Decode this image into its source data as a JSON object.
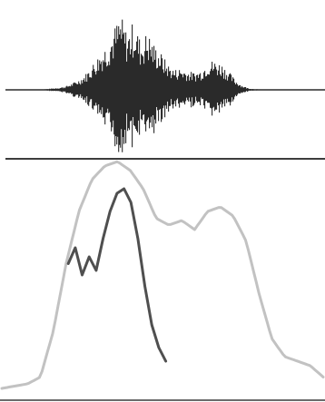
{
  "colors": {
    "background": "#ffffff",
    "waveform": "#2a2a2a",
    "axis": "#3c3c3c",
    "contour_light": "#c2c2c2",
    "contour_dark": "#4f4f4f"
  },
  "waveform": {
    "envelope": [
      0.0,
      0.01,
      0.02,
      0.03,
      0.05,
      0.09,
      0.14,
      0.22,
      0.35,
      0.48,
      0.6,
      0.78,
      0.95,
      0.72,
      0.88,
      0.62,
      0.74,
      0.58,
      0.47,
      0.33,
      0.26,
      0.28,
      0.24,
      0.22,
      0.26,
      0.38,
      0.37,
      0.34,
      0.24,
      0.13,
      0.06,
      0.02,
      0.01,
      0.0,
      0.0,
      0.0
    ],
    "region_fraction": [
      0.15,
      0.82
    ]
  },
  "contours": {
    "intensity": [
      0.0,
      0.01,
      0.02,
      0.05,
      0.25,
      0.55,
      0.78,
      0.92,
      0.98,
      1.0,
      0.96,
      0.88,
      0.75,
      0.72,
      0.74,
      0.7,
      0.78,
      0.8,
      0.76,
      0.65,
      0.42,
      0.22,
      0.14,
      0.12,
      0.1,
      0.05
    ],
    "pitch": [
      0.55,
      0.62,
      0.5,
      0.58,
      0.52,
      0.66,
      0.78,
      0.86,
      0.88,
      0.82,
      0.66,
      0.45,
      0.28,
      0.18,
      0.12
    ],
    "pitch_span_fraction": [
      0.21,
      0.51
    ]
  }
}
